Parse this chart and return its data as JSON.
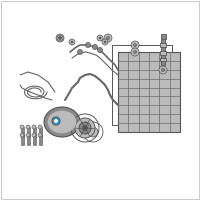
{
  "bg_color": "#ffffff",
  "border_color": "#cccccc",
  "part_color": "#888888",
  "part_light": "#bbbbbb",
  "part_dark": "#555555",
  "highlight_color": "#3399cc",
  "line_color": "#666666",
  "figsize": [
    2.0,
    2.0
  ],
  "dpi": 100
}
